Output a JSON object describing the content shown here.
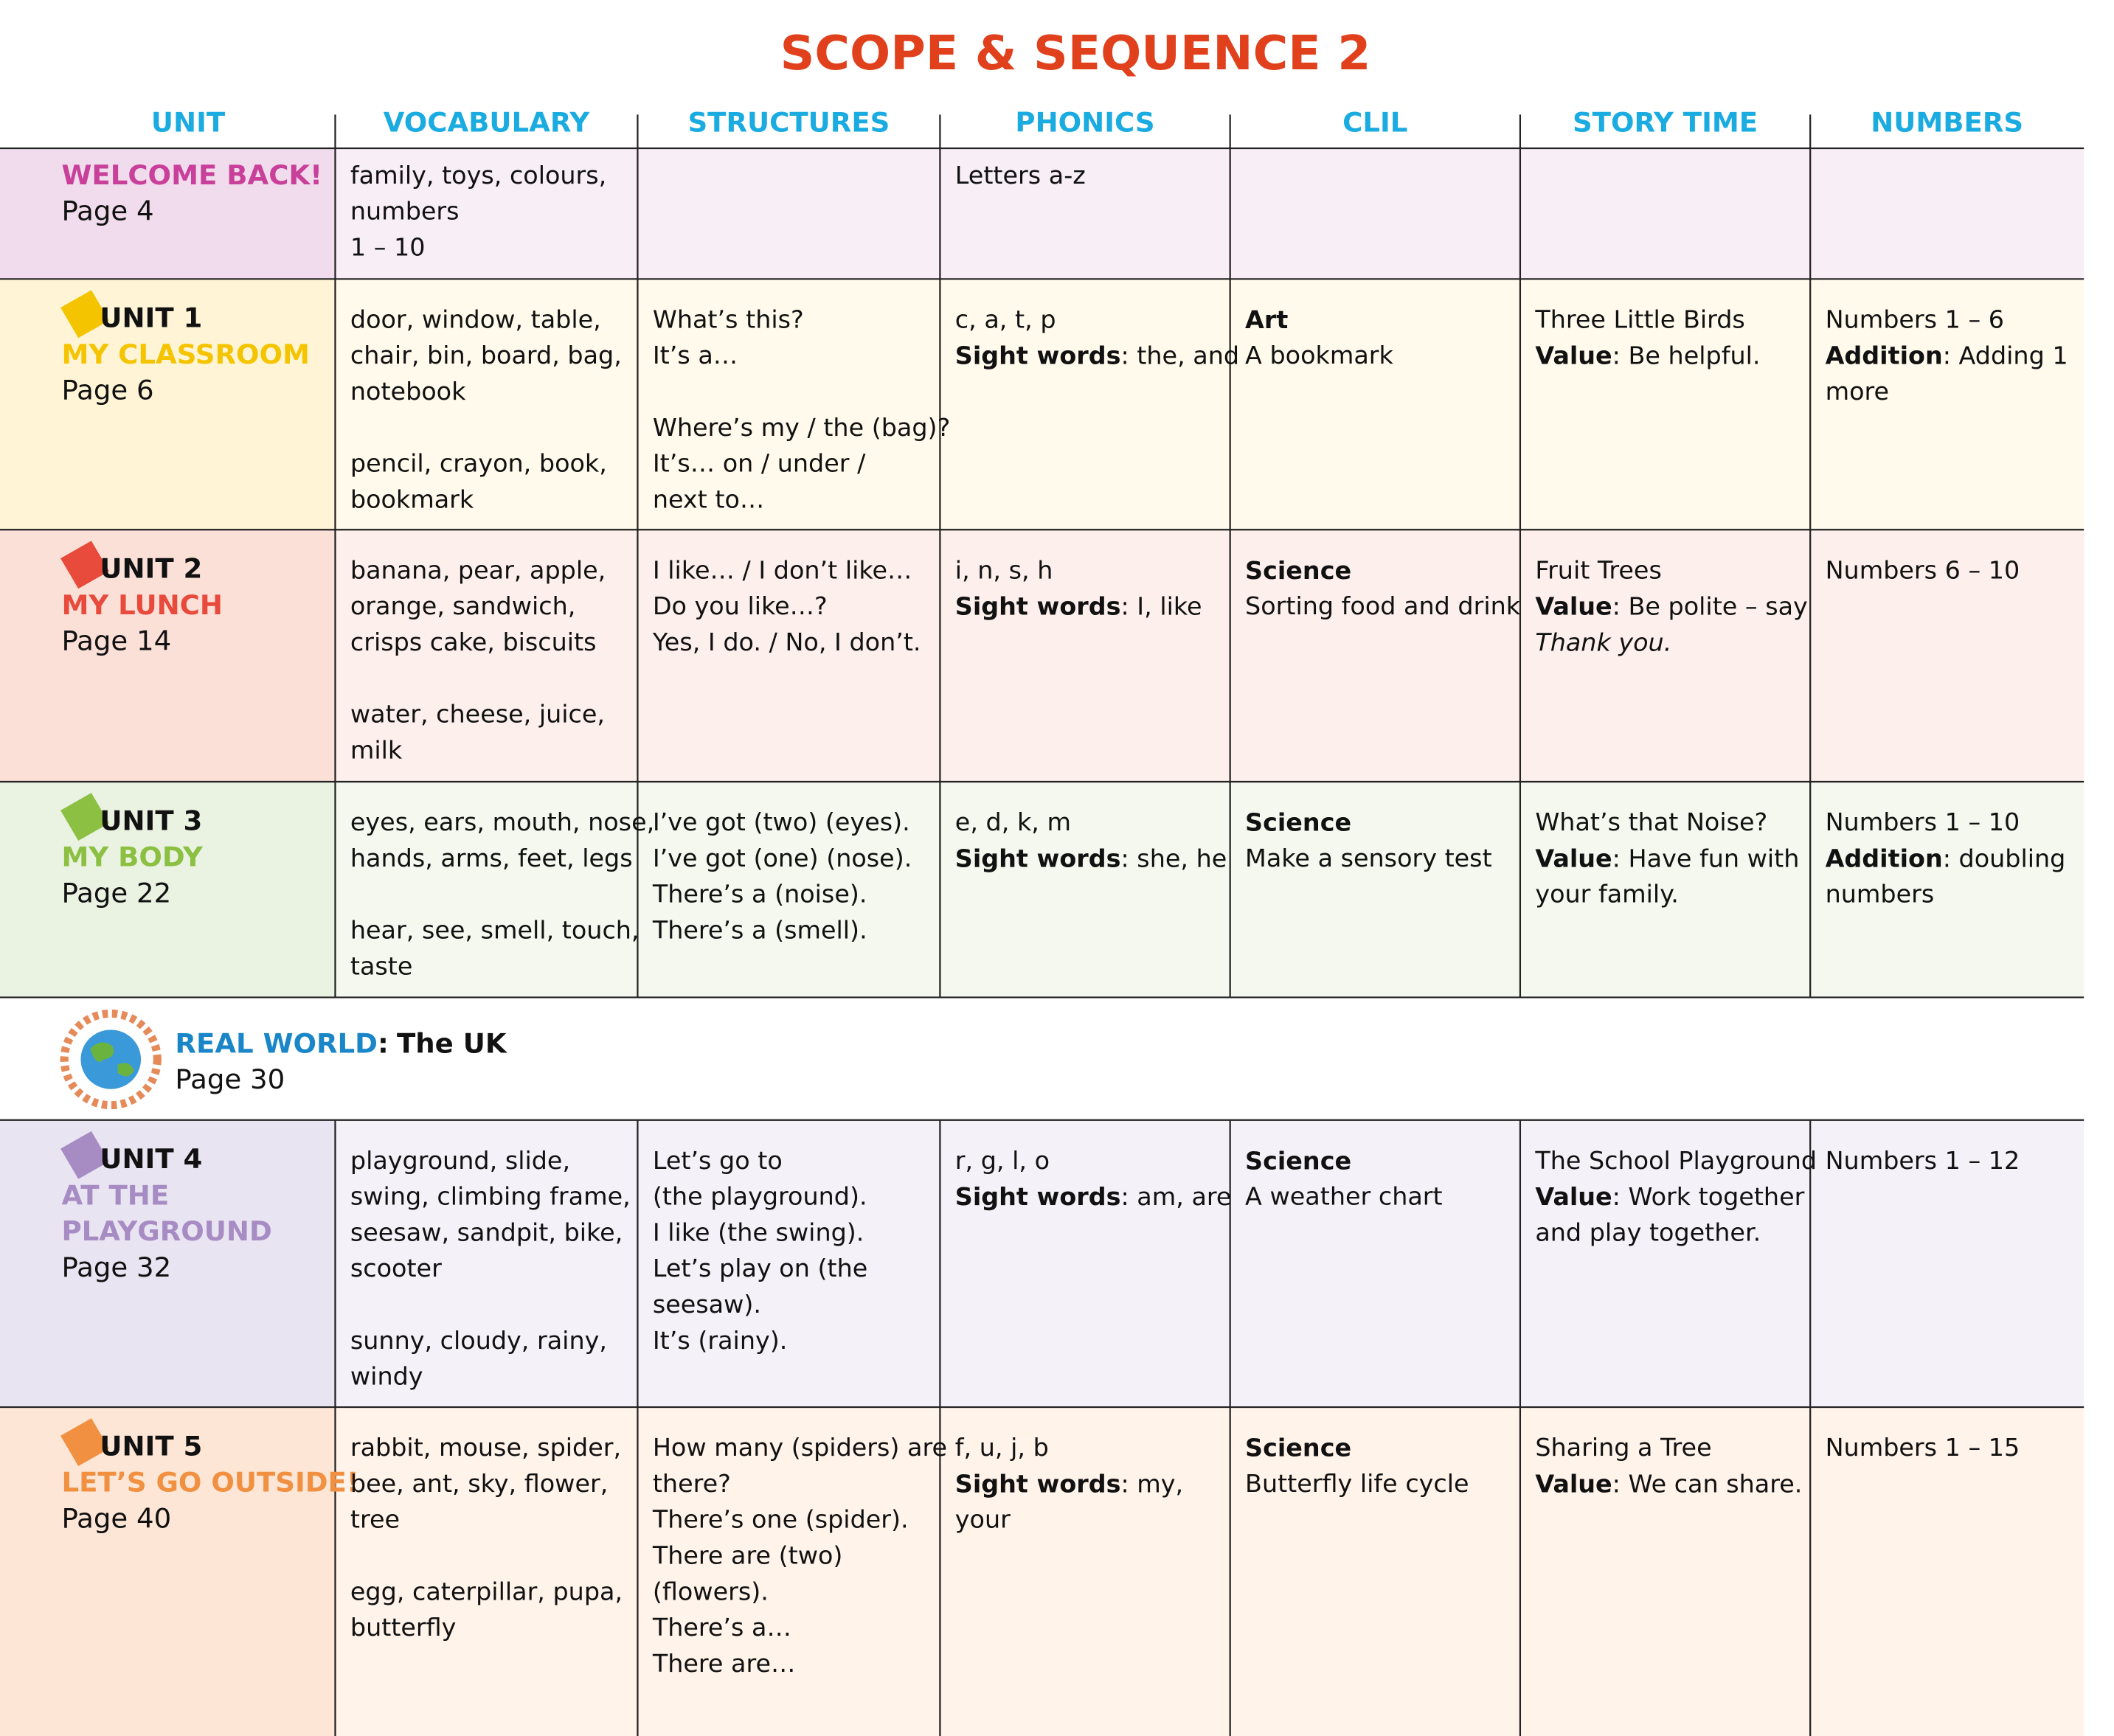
{
  "title": "SCOPE & SEQUENCE 2",
  "columns": [
    "UNIT",
    "VOCABULARY",
    "STRUCTURES",
    "PHONICS",
    "CLIL",
    "STORY TIME",
    "NUMBERS"
  ],
  "rows": [
    {
      "bg": "#f8eef6",
      "bg_unit": "#f0dcec",
      "color": "#c8409a",
      "unit": {
        "title": [
          "WELCOME BACK!"
        ],
        "page": "Page 4"
      },
      "cells": [
        [
          [
            "family, toys, colours,",
            "numbers",
            "1 – 10"
          ]
        ],
        [],
        [
          [
            "Letters a-z"
          ]
        ],
        [],
        [],
        []
      ]
    },
    {
      "bg": "#fffaec",
      "bg_unit": "#fff5d6",
      "color": "#f5c400",
      "unit": {
        "number": "UNIT 1",
        "title": [
          "MY CLASSROOM"
        ],
        "page": "Page 6"
      },
      "cells": [
        [
          [
            "door, window, table,",
            "chair, bin, board, bag,",
            "notebook"
          ],
          [
            "pencil, crayon, book,",
            "bookmark"
          ]
        ],
        [
          [
            "What’s this?",
            "It’s a…"
          ],
          [
            "Where’s my / the (bag)?",
            "It’s… on / under /",
            "next to…"
          ]
        ],
        [
          [
            "c, a, t, p",
            {
              "bold": "Sight words",
              "text": ": the, and"
            }
          ]
        ],
        [
          [
            {
              "bold": "Art"
            },
            "A bookmark"
          ]
        ],
        [
          [
            "Three Little Birds",
            {
              "bold": "Value",
              "text": ": Be helpful."
            }
          ]
        ],
        [
          [
            "Numbers 1 – 6",
            {
              "bold": "Addition",
              "text": ": Adding 1"
            },
            "more"
          ]
        ]
      ]
    },
    {
      "bg": "#fdf0ec",
      "bg_unit": "#fbe0d8",
      "color": "#e84a3c",
      "unit": {
        "number": "UNIT 2",
        "title": [
          "MY LUNCH"
        ],
        "page": "Page 14"
      },
      "cells": [
        [
          [
            "banana, pear, apple,",
            "orange, sandwich,",
            "crisps cake, biscuits"
          ],
          [
            "water, cheese, juice,",
            "milk"
          ]
        ],
        [
          [
            "I like… / I don’t like…",
            "Do you like…?",
            "Yes, I do. / No, I don’t."
          ]
        ],
        [
          [
            "i, n, s, h",
            {
              "bold": "Sight words",
              "text": ": I, like"
            }
          ]
        ],
        [
          [
            {
              "bold": "Science"
            },
            "Sorting food and drink"
          ]
        ],
        [
          [
            "Fruit Trees",
            {
              "bold": "Value",
              "text": ": Be polite – say"
            },
            {
              "italic": "Thank you."
            }
          ]
        ],
        [
          [
            "Numbers 6 – 10"
          ]
        ]
      ]
    },
    {
      "bg": "#f4f8ee",
      "bg_unit": "#eaf2e2",
      "color": "#8cc043",
      "unit": {
        "number": "UNIT 3",
        "title": [
          "MY BODY"
        ],
        "page": "Page 22"
      },
      "cells": [
        [
          [
            "eyes, ears, mouth, nose,",
            "hands, arms, feet, legs"
          ],
          [
            "hear, see, smell, touch,",
            "taste"
          ]
        ],
        [
          [
            "I’ve got (two) (eyes).",
            "I’ve got (one) (nose).",
            "There’s a (noise).",
            "There’s a (smell)."
          ]
        ],
        [
          [
            "e, d, k, m",
            {
              "bold": "Sight words",
              "text": ": she, he"
            }
          ]
        ],
        [
          [
            {
              "bold": "Science"
            },
            "Make a sensory test"
          ]
        ],
        [
          [
            "What’s that Noise?",
            {
              "bold": "Value",
              "text": ": Have fun with"
            },
            "your family."
          ]
        ],
        [
          [
            "Numbers 1 – 10",
            {
              "bold": "Addition",
              "text": ": doubling"
            },
            "numbers"
          ]
        ]
      ]
    },
    {
      "real_world": {
        "label": "REAL WORLD",
        "sep": ":",
        "name": "The UK",
        "page": "Page 30"
      }
    },
    {
      "bg": "#f4f1f8",
      "bg_unit": "#e9e4f1",
      "color": "#a78cc4",
      "unit": {
        "number": "UNIT 4",
        "title": [
          "AT THE",
          "PLAYGROUND"
        ],
        "page": "Page 32"
      },
      "cells": [
        [
          [
            "playground, slide,",
            "swing, climbing frame,",
            "seesaw, sandpit, bike,",
            "scooter"
          ],
          [
            "sunny, cloudy, rainy,",
            "windy"
          ]
        ],
        [
          [
            "Let’s go to",
            "(the playground).",
            "I like (the swing).",
            "Let’s play on (the",
            "seesaw).",
            "It’s (rainy)."
          ]
        ],
        [
          [
            "r, g, l, o",
            {
              "bold": "Sight words",
              "text": ": am, are"
            }
          ]
        ],
        [
          [
            {
              "bold": "Science"
            },
            "A weather chart"
          ]
        ],
        [
          [
            "The School Playground",
            {
              "bold": "Value",
              "text": ": Work together"
            },
            "and play together."
          ]
        ],
        [
          [
            "Numbers 1 – 12"
          ]
        ]
      ]
    },
    {
      "bg": "#fff3ea",
      "bg_unit": "#fde6d6",
      "color": "#f09040",
      "unit": {
        "number": "UNIT 5",
        "title": [
          "LET’S GO OUTSIDE!"
        ],
        "page": "Page 40"
      },
      "cells": [
        [
          [
            "rabbit, mouse, spider,",
            "bee, ant, sky, flower,",
            "tree"
          ],
          [
            "egg, caterpillar, pupa,",
            "butterfly"
          ]
        ],
        [
          [
            "How many (spiders) are",
            "there?",
            "There’s one (spider).",
            "There are (two)",
            "(flowers).",
            "There’s a…",
            "There are…"
          ]
        ],
        [
          [
            "f, u, j, b",
            {
              "bold": "Sight words",
              "text": ": my,"
            },
            "your"
          ]
        ],
        [
          [
            {
              "bold": "Science"
            },
            "Butterfly life cycle"
          ]
        ],
        [
          [
            "Sharing a Tree",
            {
              "bold": "Value",
              "text": ": We can share."
            }
          ]
        ],
        [
          [
            "Numbers 1 – 15"
          ]
        ]
      ]
    }
  ]
}
